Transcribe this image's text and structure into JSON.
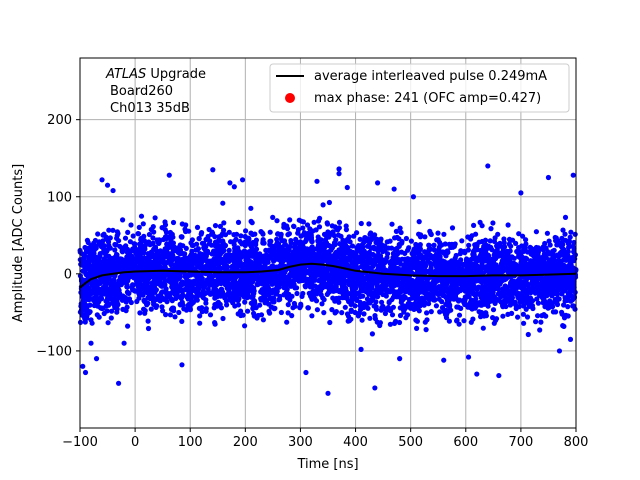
{
  "chart_data": {
    "type": "scatter",
    "title": "",
    "xlabel": "Time [ns]",
    "ylabel": "Amplitude [ADC Counts]",
    "xlim": [
      -100,
      800
    ],
    "ylim": [
      -200,
      280
    ],
    "xticks": [
      -100,
      0,
      100,
      200,
      300,
      400,
      500,
      600,
      700,
      800
    ],
    "yticks": [
      -100,
      0,
      100,
      200
    ],
    "grid": true,
    "legend_position": "top-right",
    "annotation": {
      "line1_italic": "ATLAS",
      "line1_rest": " Upgrade",
      "line2": "Board260",
      "line3": "Ch013 35dB"
    },
    "colors": {
      "scatter": "#0000ff",
      "average_line": "#000000",
      "max_phase": "#ff0000",
      "grid": "#b0b0b0"
    },
    "series": [
      {
        "name": "average interleaved pulse 0.249mA",
        "kind": "line",
        "x": [
          -100,
          -90,
          -80,
          -60,
          -40,
          -20,
          0,
          50,
          100,
          150,
          200,
          230,
          260,
          280,
          300,
          320,
          340,
          360,
          380,
          400,
          450,
          500,
          550,
          600,
          650,
          700,
          750,
          800
        ],
        "y": [
          -18,
          -12,
          -7,
          -2,
          0,
          2,
          3,
          4,
          3,
          2,
          2,
          3,
          5,
          9,
          12,
          13,
          12,
          10,
          7,
          4,
          0,
          -2,
          -3,
          -3,
          -2,
          -2,
          -1,
          0
        ]
      },
      {
        "name": "max phase: 241 (OFC amp=0.427)",
        "kind": "point",
        "x": [],
        "y": []
      },
      {
        "name": "",
        "kind": "scatter",
        "description_points": "dense noise cloud ~ +/-50 ADC counts around the average pulse, outliers to ~+/-140",
        "x": [
          -95,
          -90,
          -80,
          -70,
          -60,
          -50,
          -40,
          -30,
          62,
          141,
          172,
          180,
          210,
          310,
          350,
          370,
          370,
          385,
          410,
          435,
          440,
          470,
          505,
          560,
          605,
          640,
          660,
          700,
          750,
          770,
          795,
          -20,
          85,
          195,
          330,
          480,
          620,
          790
        ],
        "y": [
          -120,
          -128,
          -90,
          -110,
          122,
          115,
          108,
          -142,
          128,
          135,
          118,
          113,
          85,
          -128,
          -155,
          136,
          130,
          112,
          -98,
          -148,
          118,
          110,
          100,
          -112,
          -108,
          140,
          -132,
          105,
          125,
          -100,
          128,
          -90,
          -118,
          122,
          120,
          -110,
          -130,
          -85
        ]
      }
    ]
  }
}
